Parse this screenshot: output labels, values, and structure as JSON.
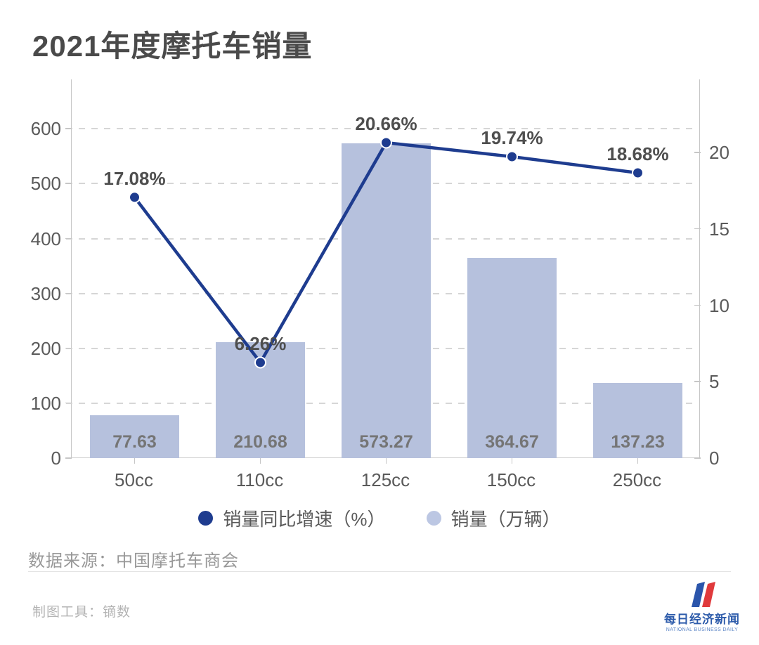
{
  "title": "2021年度摩托车销量",
  "chart_data": {
    "type": "bar",
    "subtype": "bar+line combo",
    "categories": [
      "50cc",
      "110cc",
      "125cc",
      "150cc",
      "250cc"
    ],
    "series": [
      {
        "name": "销量（万辆）",
        "render": "bar",
        "axis": "left",
        "values": [
          77.63,
          210.68,
          573.27,
          364.67,
          137.23
        ],
        "labels": [
          "77.63",
          "210.68",
          "573.27",
          "364.67",
          "137.23"
        ],
        "color": "#b6c1dd"
      },
      {
        "name": "销量同比增速（%）",
        "render": "line",
        "axis": "right",
        "values": [
          17.08,
          6.26,
          20.66,
          19.74,
          18.68
        ],
        "labels": [
          "17.08%",
          "6.26%",
          "20.66%",
          "19.74%",
          "18.68%"
        ],
        "color": "#1e3c8f"
      }
    ],
    "left_axis": {
      "ticks": [
        0,
        100,
        200,
        300,
        400,
        500,
        600
      ],
      "max": 690
    },
    "right_axis": {
      "ticks": [
        0,
        5,
        10,
        15,
        20
      ],
      "max": 24.8
    },
    "grid": true,
    "legend_position": "bottom",
    "title": "2021年度摩托车销量"
  },
  "legend": {
    "line_label": "销量同比增速（%）",
    "bar_label": "销量（万辆）",
    "line_color": "#1e3c8f",
    "bar_color": "#bcc7e3"
  },
  "source": "数据来源：中国摩托车商会",
  "footer": {
    "tool": "制图工具：镝数",
    "logo_cn": "每日经济新闻",
    "logo_en": "NATIONAL BUSINESS DAILY",
    "logo_blue": "#2b55ab",
    "logo_red": "#e03a3c"
  },
  "colors": {
    "bar_fill": "#b6c1dd",
    "line": "#1e3c8f",
    "grid": "#d6d6d6",
    "axis": "#c6c6c6",
    "title_text": "#4a4a4a",
    "axis_text": "#5a5a5a",
    "bar_value_text": "#757575",
    "point_value_text": "#4e4e4e"
  }
}
